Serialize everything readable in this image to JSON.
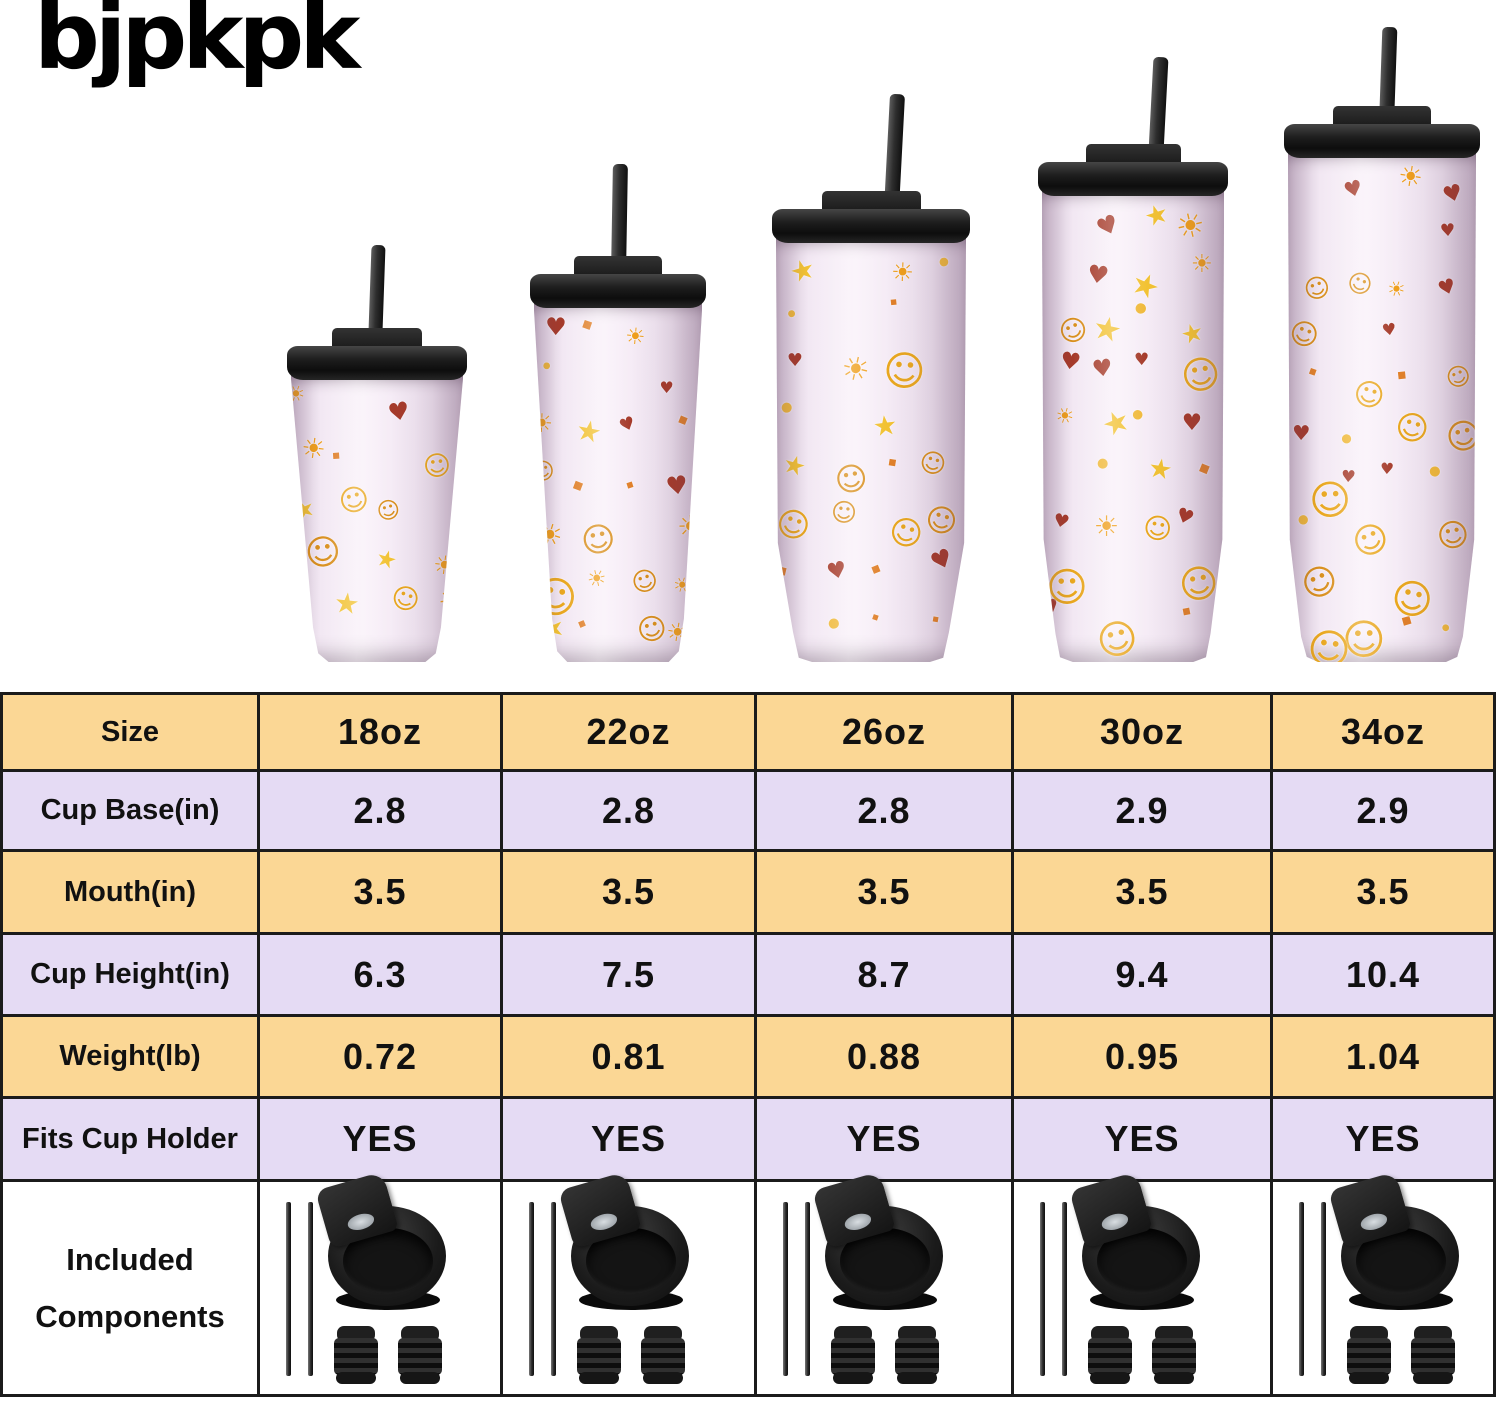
{
  "brand": {
    "logo": "bjpkpk"
  },
  "colors": {
    "band_yellow": "#fbd795",
    "band_purple": "#e5dbf4",
    "table_border": "#1b1b1b",
    "tumbler_body_pink": "#f2e7f3",
    "lid_black": "#1d1d1d"
  },
  "hero": {
    "tumbler_sizes": [
      "18oz",
      "22oz",
      "26oz",
      "30oz",
      "34oz"
    ]
  },
  "table": {
    "rows": [
      {
        "label": "Size",
        "values": [
          "18oz",
          "22oz",
          "26oz",
          "30oz",
          "34oz"
        ]
      },
      {
        "label": "Cup Base(in)",
        "values": [
          "2.8",
          "2.8",
          "2.8",
          "2.9",
          "2.9"
        ]
      },
      {
        "label": "Mouth(in)",
        "values": [
          "3.5",
          "3.5",
          "3.5",
          "3.5",
          "3.5"
        ]
      },
      {
        "label": "Cup Height(in)",
        "values": [
          "6.3",
          "7.5",
          "8.7",
          "9.4",
          "10.4"
        ]
      },
      {
        "label": "Weight(lb)",
        "values": [
          "0.72",
          "0.81",
          "0.88",
          "0.95",
          "1.04"
        ]
      },
      {
        "label": "Fits Cup Holder",
        "values": [
          "YES",
          "YES",
          "YES",
          "YES",
          "YES"
        ]
      }
    ],
    "components_row": {
      "label_line1": "Included",
      "label_line2": "Components",
      "icons": [
        "metal-straws-icon",
        "flip-lid-icon",
        "straw-stoppers-icon"
      ]
    }
  }
}
